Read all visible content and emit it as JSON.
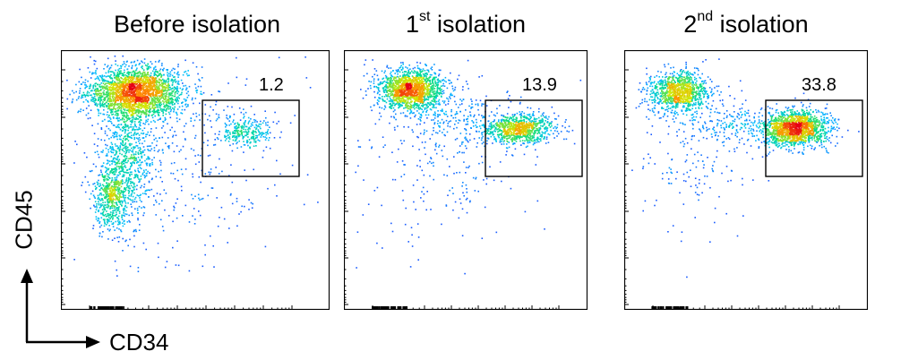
{
  "figure": {
    "xlabel": "CD34",
    "ylabel": "CD45"
  },
  "chart_data": [
    {
      "type": "scatter",
      "title_main": "Before isolation",
      "title_sup": "",
      "title_rest": "",
      "gate_value": "1.2",
      "populations": [
        {
          "name": "main",
          "cx": 0.28,
          "cy": 0.84,
          "sx": 0.09,
          "sy": 0.05,
          "n": 2400
        },
        {
          "name": "tail",
          "cx": 0.24,
          "cy": 0.58,
          "sx": 0.05,
          "sy": 0.12,
          "n": 800
        },
        {
          "name": "low",
          "cx": 0.18,
          "cy": 0.43,
          "sx": 0.03,
          "sy": 0.06,
          "n": 450
        },
        {
          "name": "gated",
          "cx": 0.68,
          "cy": 0.69,
          "sx": 0.05,
          "sy": 0.03,
          "n": 260
        },
        {
          "name": "sparse",
          "cx": 0.42,
          "cy": 0.6,
          "sx": 0.2,
          "sy": 0.18,
          "n": 400
        }
      ]
    },
    {
      "type": "scatter",
      "title_main": "1",
      "title_sup": "st",
      "title_rest": " isolation",
      "gate_value": "13.9",
      "populations": [
        {
          "name": "main",
          "cx": 0.27,
          "cy": 0.85,
          "sx": 0.07,
          "sy": 0.04,
          "n": 1500
        },
        {
          "name": "gated",
          "cx": 0.72,
          "cy": 0.7,
          "sx": 0.07,
          "sy": 0.03,
          "n": 900
        },
        {
          "name": "bridge",
          "cx": 0.45,
          "cy": 0.75,
          "sx": 0.12,
          "sy": 0.05,
          "n": 180
        },
        {
          "name": "sparse",
          "cx": 0.38,
          "cy": 0.6,
          "sx": 0.18,
          "sy": 0.16,
          "n": 260
        }
      ]
    },
    {
      "type": "scatter",
      "title_main": "2",
      "title_sup": "nd",
      "title_rest": " isolation",
      "gate_value": "33.8",
      "populations": [
        {
          "name": "main",
          "cx": 0.22,
          "cy": 0.84,
          "sx": 0.06,
          "sy": 0.04,
          "n": 1000
        },
        {
          "name": "gated",
          "cx": 0.7,
          "cy": 0.7,
          "sx": 0.07,
          "sy": 0.035,
          "n": 1500
        },
        {
          "name": "bridge",
          "cx": 0.45,
          "cy": 0.72,
          "sx": 0.12,
          "sy": 0.04,
          "n": 200
        },
        {
          "name": "sparse",
          "cx": 0.3,
          "cy": 0.62,
          "sx": 0.12,
          "sy": 0.14,
          "n": 180
        }
      ]
    }
  ]
}
